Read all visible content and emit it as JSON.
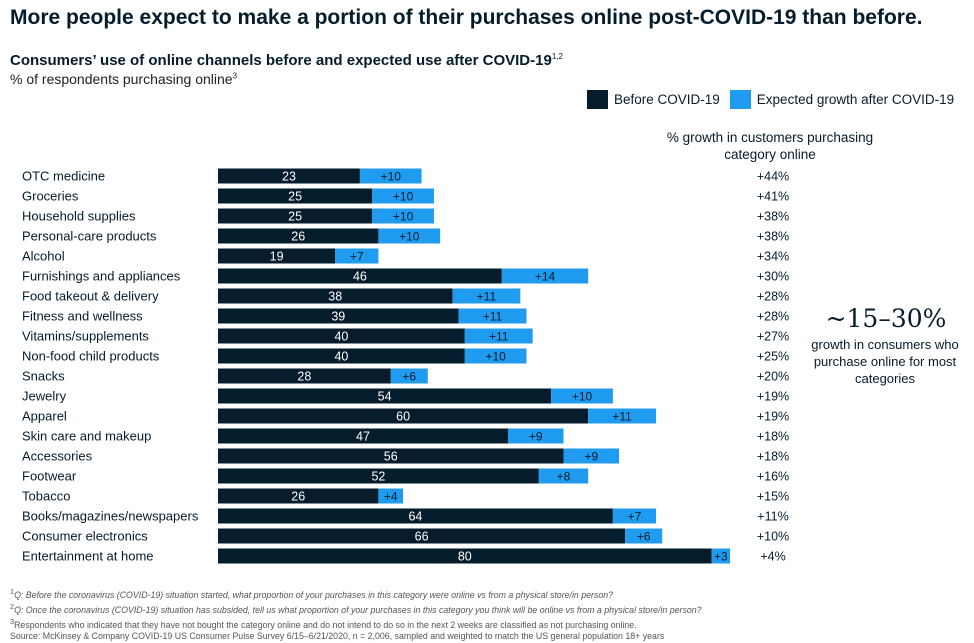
{
  "headline": "More people expect to make a portion of their purchases online post-COVID-19 than before.",
  "colors": {
    "before": "#051c2c",
    "growth": "#1f9bf0",
    "text": "#051c2c"
  },
  "growth_header": "% growth in customers purchasing category online",
  "callout": {
    "big": "~15–30%",
    "small": "growth in consumers who purchase online for most categories"
  },
  "footnotes": [
    {
      "mark": "1",
      "text": "Q: Before the coronavirus (COVID-19) situation started, what proportion of your purchases in this category were online vs from a physical store/in person?"
    },
    {
      "mark": "2",
      "text": "Q: Once the coronavirus (COVID-19) situation has subsided, tell us what proportion of your purchases in this category you think will be online vs from a physical store/in person?"
    },
    {
      "mark": "3",
      "text": "Respondents who indicated that they have not bought the category online and do not intend to do so in the next 2 weeks are classified as not purchasing online."
    },
    {
      "mark": "",
      "text": "Source: McKinsey & Company COVID-19 US Consumer Pulse Survey 6/15–6/21/2020, n = 2,006, sampled and weighted to match the US general population 18+ years"
    }
  ],
  "chart_data": {
    "type": "bar",
    "orientation": "horizontal",
    "stacked": true,
    "title": "Consumers’ use of online channels before and expected use after COVID-19",
    "title_sup": "1,2",
    "ylabel": "% of respondents purchasing online",
    "ylabel_sup": "3",
    "legend_position": "top-right",
    "categories": [
      "OTC medicine",
      "Groceries",
      "Household supplies",
      "Personal-care products",
      "Alcohol",
      "Furnishings and appliances",
      "Food takeout & delivery",
      "Fitness and wellness",
      "Vitamins/supplements",
      "Non-food child products",
      "Snacks",
      "Jewelry",
      "Apparel",
      "Skin care and makeup",
      "Accessories",
      "Footwear",
      "Tobacco",
      "Books/magazines/newspapers",
      "Consumer electronics",
      "Entertainment at home"
    ],
    "series": [
      {
        "name": "Before COVID-19",
        "values": [
          23,
          25,
          25,
          26,
          19,
          46,
          38,
          39,
          40,
          40,
          28,
          54,
          60,
          47,
          56,
          52,
          26,
          64,
          66,
          80
        ],
        "labels": [
          "23",
          "25",
          "25",
          "26",
          "19",
          "46",
          "38",
          "39",
          "40",
          "40",
          "28",
          "54",
          "60",
          "47",
          "56",
          "52",
          "26",
          "64",
          "66",
          "80"
        ]
      },
      {
        "name": "Expected growth after COVID-19",
        "values": [
          10,
          10,
          10,
          10,
          7,
          14,
          11,
          11,
          11,
          10,
          6,
          10,
          11,
          9,
          9,
          8,
          4,
          7,
          6,
          3
        ],
        "labels": [
          "+10",
          "+10",
          "+10",
          "+10",
          "+7",
          "+14",
          "+11",
          "+11",
          "+11",
          "+10",
          "+6",
          "+10",
          "+11",
          "+9",
          "+9",
          "+8",
          "+4",
          "+7",
          "+6",
          "+3"
        ]
      }
    ],
    "growth_pct": [
      "+44%",
      "+41%",
      "+38%",
      "+38%",
      "+34%",
      "+30%",
      "+28%",
      "+28%",
      "+27%",
      "+25%",
      "+20%",
      "+19%",
      "+19%",
      "+18%",
      "+18%",
      "+16%",
      "+15%",
      "+11%",
      "+10%",
      "+4%"
    ],
    "xlim": [
      0,
      83
    ]
  }
}
